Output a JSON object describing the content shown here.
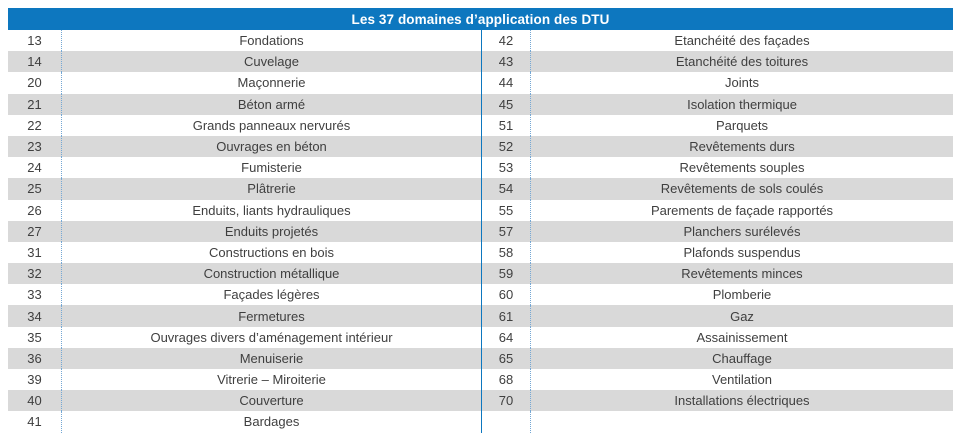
{
  "table": {
    "title": "Les 37 domaines d’application des DTU",
    "rows": [
      {
        "left_num": "13",
        "left_label": "Fondations",
        "right_num": "42",
        "right_label": "Etanchéité des façades"
      },
      {
        "left_num": "14",
        "left_label": "Cuvelage",
        "right_num": "43",
        "right_label": "Etanchéité des toitures"
      },
      {
        "left_num": "20",
        "left_label": "Maçonnerie",
        "right_num": "44",
        "right_label": "Joints"
      },
      {
        "left_num": "21",
        "left_label": "Béton armé",
        "right_num": "45",
        "right_label": "Isolation thermique"
      },
      {
        "left_num": "22",
        "left_label": "Grands panneaux nervurés",
        "right_num": "51",
        "right_label": "Parquets"
      },
      {
        "left_num": "23",
        "left_label": "Ouvrages en béton",
        "right_num": "52",
        "right_label": "Revêtements durs"
      },
      {
        "left_num": "24",
        "left_label": "Fumisterie",
        "right_num": "53",
        "right_label": "Revêtements souples"
      },
      {
        "left_num": "25",
        "left_label": "Plâtrerie",
        "right_num": "54",
        "right_label": "Revêtements de sols coulés"
      },
      {
        "left_num": "26",
        "left_label": "Enduits, liants hydrauliques",
        "right_num": "55",
        "right_label": "Parements de façade rapportés"
      },
      {
        "left_num": "27",
        "left_label": "Enduits projetés",
        "right_num": "57",
        "right_label": "Planchers surélevés"
      },
      {
        "left_num": "31",
        "left_label": "Constructions en bois",
        "right_num": "58",
        "right_label": "Plafonds suspendus"
      },
      {
        "left_num": "32",
        "left_label": "Construction métallique",
        "right_num": "59",
        "right_label": "Revêtements minces"
      },
      {
        "left_num": "33",
        "left_label": "Façades légères",
        "right_num": "60",
        "right_label": "Plomberie"
      },
      {
        "left_num": "34",
        "left_label": "Fermetures",
        "right_num": "61",
        "right_label": "Gaz"
      },
      {
        "left_num": "35",
        "left_label": "Ouvrages divers d’aménagement intérieur",
        "right_num": "64",
        "right_label": "Assainissement"
      },
      {
        "left_num": "36",
        "left_label": "Menuiserie",
        "right_num": "65",
        "right_label": "Chauffage"
      },
      {
        "left_num": "39",
        "left_label": "Vitrerie – Miroiterie",
        "right_num": "68",
        "right_label": "Ventilation"
      },
      {
        "left_num": "40",
        "left_label": "Couverture",
        "right_num": "70",
        "right_label": "Installations électriques"
      },
      {
        "left_num": "41",
        "left_label": "Bardages",
        "right_num": "",
        "right_label": ""
      }
    ]
  },
  "colors": {
    "header_bg": "#0d77bf",
    "row_alt_bg": "#d9d9d9",
    "divider_solid": "#0d77bf",
    "divider_dotted": "#74a7d4",
    "text": "#3f3f3f",
    "header_text": "#ffffff"
  }
}
